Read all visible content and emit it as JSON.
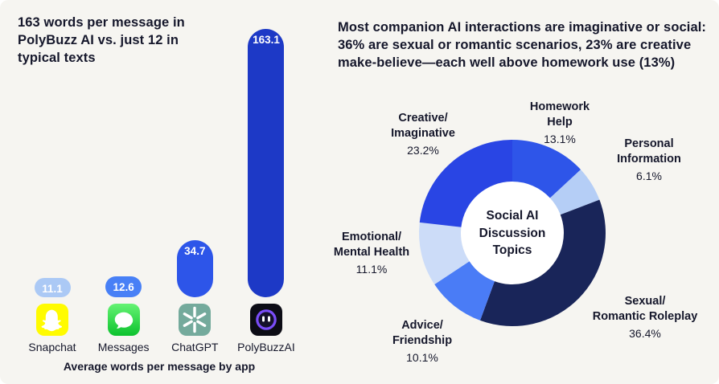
{
  "bg_color": "#f6f5f1",
  "text_color": "#15172b",
  "left": {
    "title": "163 words per message in\nPolyBuzz AI vs. just 12 in\ntypical texts"
  },
  "right": {
    "title": "Most companion AI interactions are imaginative or social:\n36% are sexual or romantic scenarios, 23% are creative\nmake-believe—each well above homework use (13%)"
  },
  "chart_data": [
    {
      "type": "bar",
      "title": "Average words per message by app",
      "categories": [
        "Snapchat",
        "Messages",
        "ChatGPT",
        "PolyBuzzAI"
      ],
      "values": [
        11.1,
        12.6,
        34.7,
        163.1
      ],
      "value_labels": [
        "11.1",
        "12.6",
        "34.7",
        "163.1"
      ],
      "colors": [
        "#abc9f5",
        "#4880f6",
        "#2d55e9",
        "#1d39c6"
      ],
      "icons": [
        "snapchat-icon",
        "messages-icon",
        "chatgpt-icon",
        "polybuzz-icon"
      ],
      "ylim": [
        0,
        170
      ],
      "grid": false
    },
    {
      "type": "donut",
      "center_label": "Social AI\nDiscussion\nTopics",
      "slices": [
        {
          "label": "Homework\nHelp",
          "value": 13.1,
          "value_label": "13.1%",
          "color": "#2e55e9"
        },
        {
          "label": "Personal\nInformation",
          "value": 6.1,
          "value_label": "6.1%",
          "color": "#b5cef6"
        },
        {
          "label": "Sexual/\nRomantic Roleplay",
          "value": 36.4,
          "value_label": "36.4%",
          "color": "#192559"
        },
        {
          "label": "Advice/\nFriendship",
          "value": 10.1,
          "value_label": "10.1%",
          "color": "#4a7cf6"
        },
        {
          "label": "Emotional/\nMental Health",
          "value": 11.1,
          "value_label": "11.1%",
          "color": "#ccdcf8"
        },
        {
          "label": "Creative/\nImaginative",
          "value": 23.2,
          "value_label": "23.2%",
          "color": "#2945e4"
        }
      ]
    }
  ]
}
